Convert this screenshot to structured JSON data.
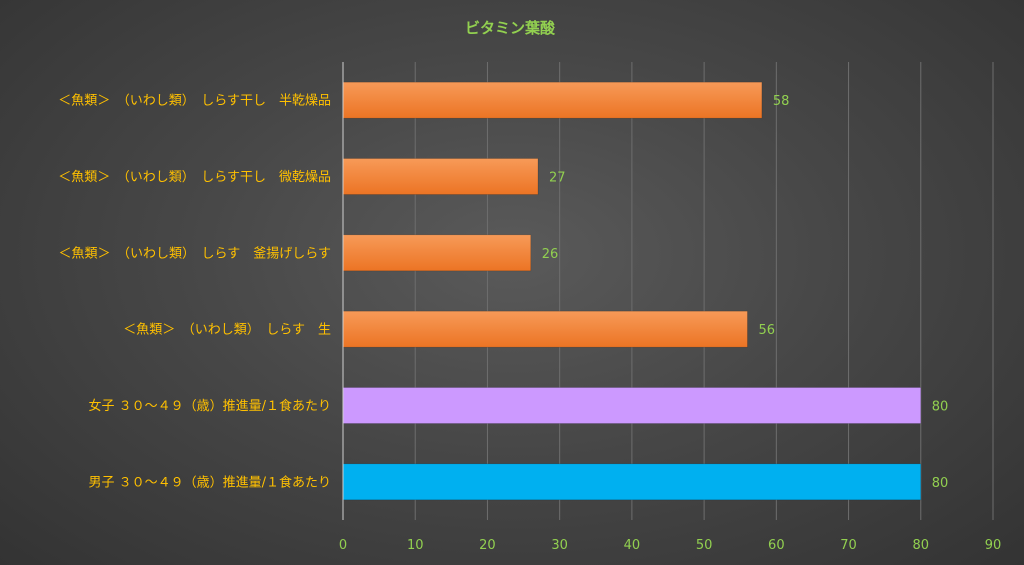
{
  "chart_data": {
    "type": "bar",
    "orientation": "horizontal",
    "title": "ビタミン葉酸",
    "categories": [
      "＜魚類＞　（いわし類）　しらす干し　半乾燥品",
      "＜魚類＞　（いわし類）　しらす干し　微乾燥品",
      "＜魚類＞　（いわし類）　しらす　釜揚げしらす",
      "＜魚類＞　（いわし類）　しらす　生",
      "女子 ３０～４９（歳）推進量/１食あたり",
      "男子 ３０～４９（歳）推進量/１食あたり"
    ],
    "values": [
      58,
      27,
      26,
      56,
      80,
      80
    ],
    "xlim": [
      0,
      90
    ],
    "xticks": [
      0,
      10,
      20,
      30,
      40,
      50,
      60,
      70,
      80,
      90
    ],
    "xticks_labels": [
      "0",
      "10",
      "20",
      "30",
      "40",
      "50",
      "60",
      "70",
      "80",
      "90"
    ],
    "grid": true,
    "legend": "none",
    "colors": {
      "food": "#f07b2c",
      "female": "#cc99ff",
      "male": "#00b0f0",
      "title": "#92d050",
      "category_labels": "#ffc000",
      "tick_labels": "#92d050",
      "data_labels": "#92d050",
      "gridlines": "#6e6e6e",
      "axis": "#d0d0d0"
    },
    "bar_colors": [
      "#f07b2c",
      "#f07b2c",
      "#f07b2c",
      "#f07b2c",
      "#cc99ff",
      "#00b0f0"
    ]
  }
}
